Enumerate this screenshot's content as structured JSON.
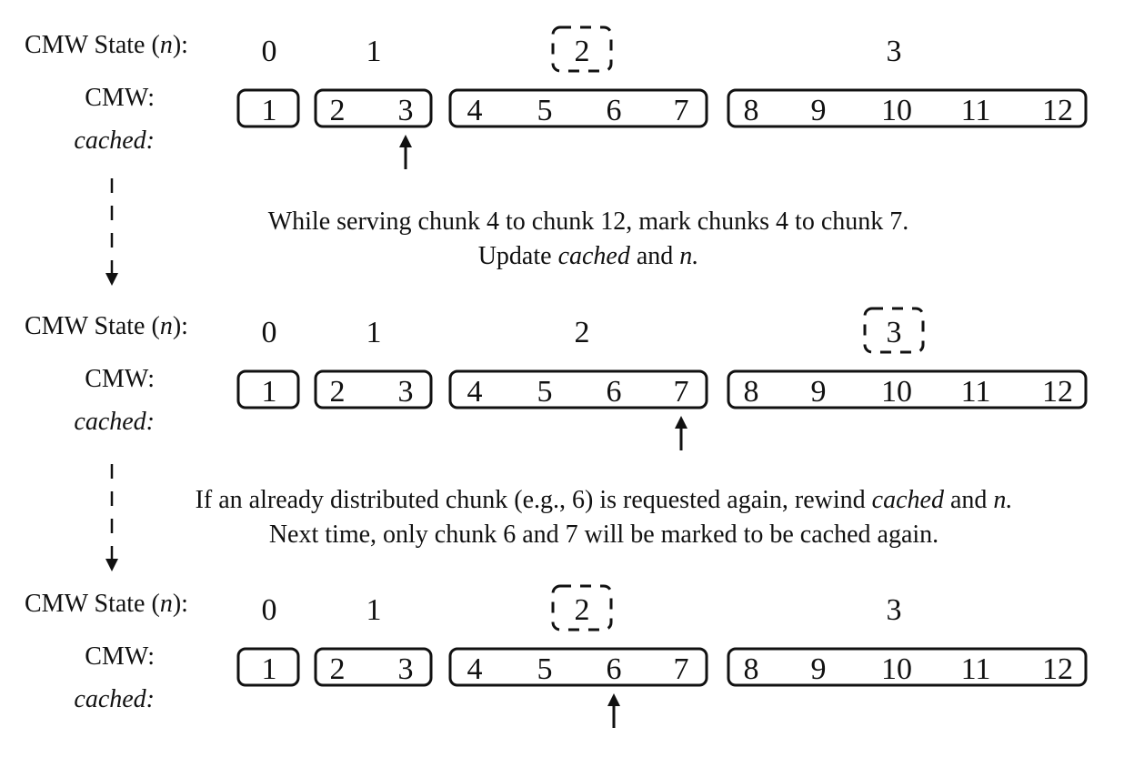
{
  "labels": {
    "state": "CMW State (",
    "n": "n",
    "state_close": "):",
    "cmw": "CMW:",
    "cached": "cached:"
  },
  "captions": {
    "first_line1": "While serving chunk 4 to chunk 12, mark chunks 4 to chunk 7.",
    "first_line2_pre": "Update ",
    "first_line2_cached": "cached",
    "first_line2_and": " and ",
    "first_line2_n": "n.",
    "second_line1_pre": "If an already distributed chunk (e.g., 6) is requested again, rewind ",
    "second_line1_cached": "cached",
    "second_line1_and": " and ",
    "second_line1_n": "n.",
    "second_line2": "Next time, only chunk 6 and 7 will be marked to  be cached again."
  },
  "states": [
    "0",
    "1",
    "2",
    "3"
  ],
  "groups": [
    [
      "1"
    ],
    [
      "2",
      "3"
    ],
    [
      "4",
      "5",
      "6",
      "7"
    ],
    [
      "8",
      "9",
      "10",
      "11",
      "12"
    ]
  ],
  "panels": [
    {
      "current_state": "2",
      "cached_pointer_chunk": "3"
    },
    {
      "current_state": "3",
      "cached_pointer_chunk": "7"
    },
    {
      "current_state": "2",
      "cached_pointer_chunk": "6"
    }
  ]
}
